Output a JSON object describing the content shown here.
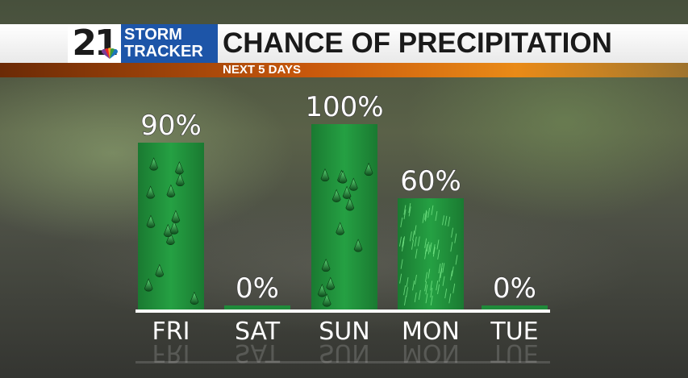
{
  "branding": {
    "channel_number": "21",
    "logo_line1": "STORM",
    "logo_line2": "TRACKER",
    "brand_color": "#1d55a8"
  },
  "chart_data": {
    "type": "bar",
    "title": "CHANCE OF PRECIPITATION",
    "subtitle": "NEXT 5 DAYS",
    "categories": [
      "FRI",
      "SAT",
      "SUN",
      "MON",
      "TUE"
    ],
    "values": [
      90,
      0,
      100,
      60,
      0
    ],
    "value_labels": [
      "90%",
      "0%",
      "100%",
      "60%",
      "0%"
    ],
    "ylim": [
      0,
      100
    ],
    "bar_color": "#1f8a3a",
    "bar_fill_pattern": [
      "drops",
      "none",
      "drops",
      "rain-streaks",
      "none"
    ],
    "grid": false,
    "legend": "none"
  }
}
